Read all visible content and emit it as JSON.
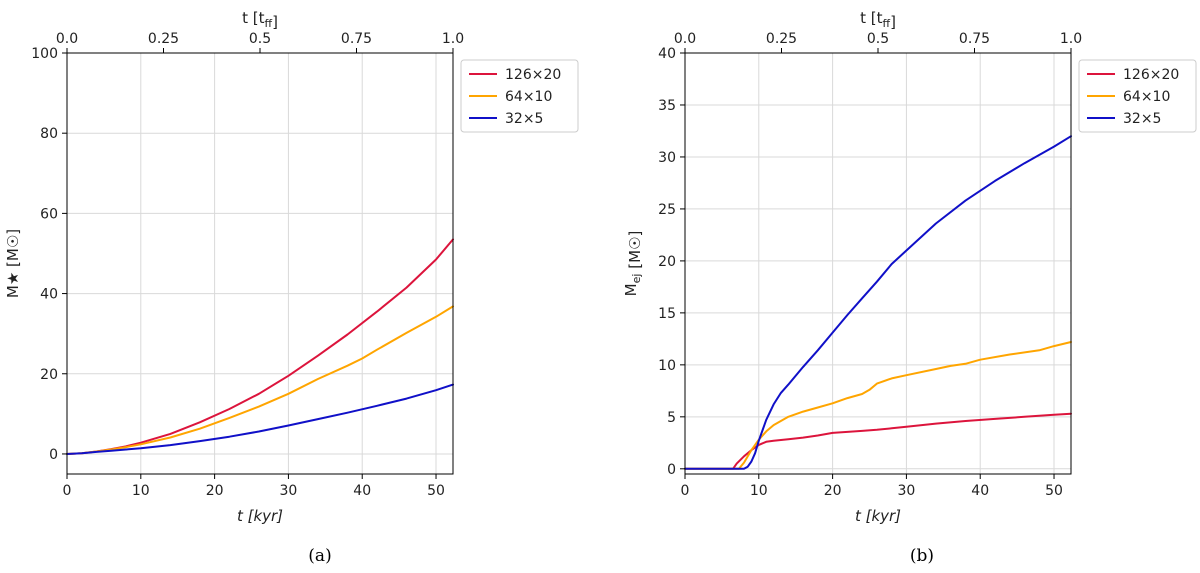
{
  "chart_data": [
    {
      "id": "a",
      "type": "line",
      "caption": "(a)",
      "xlabel": "t [kyr]",
      "ylabel": "M★ [M☉]",
      "top_xlabel": "t [t_ff]",
      "xlim": [
        0,
        52.3
      ],
      "ylim": [
        -5,
        100
      ],
      "xticks": [
        0,
        10,
        20,
        30,
        40,
        50
      ],
      "xtick_labels": [
        "0",
        "10",
        "20",
        "30",
        "40",
        "50"
      ],
      "yticks": [
        0,
        20,
        40,
        60,
        80,
        100
      ],
      "ytick_labels": [
        "0",
        "20",
        "40",
        "60",
        "80",
        "100"
      ],
      "top_xticks": [
        0,
        0.25,
        0.5,
        0.75,
        1.0
      ],
      "top_xtick_labels": [
        "0.0",
        "0.25",
        "0.5",
        "0.75",
        "1.0"
      ],
      "legend_position": "outside-top-right",
      "series": [
        {
          "name": "126×20",
          "color": "#dc143c",
          "x": [
            0,
            2,
            4,
            6,
            8,
            10,
            14,
            18,
            22,
            26,
            30,
            34,
            38,
            42,
            46,
            50,
            52.3
          ],
          "y": [
            0,
            0.2,
            0.6,
            1.2,
            1.9,
            2.8,
            5.0,
            7.9,
            11.2,
            15.0,
            19.5,
            24.5,
            29.8,
            35.5,
            41.5,
            48.5,
            53.5
          ]
        },
        {
          "name": "64×10",
          "color": "#ffa500",
          "x": [
            0,
            2,
            4,
            6,
            8,
            10,
            14,
            18,
            22,
            26,
            30,
            34,
            38,
            40,
            42,
            46,
            50,
            52.3
          ],
          "y": [
            0,
            0.2,
            0.6,
            1.1,
            1.7,
            2.4,
            4.1,
            6.3,
            9.0,
            11.8,
            15.0,
            18.7,
            22.0,
            23.8,
            26.0,
            30.2,
            34.2,
            36.8
          ]
        },
        {
          "name": "32×5",
          "color": "#1010c8",
          "x": [
            0,
            2,
            4,
            6,
            8,
            10,
            14,
            18,
            22,
            26,
            30,
            34,
            38,
            42,
            46,
            50,
            52.3
          ],
          "y": [
            0,
            0.2,
            0.5,
            0.8,
            1.1,
            1.4,
            2.2,
            3.2,
            4.3,
            5.6,
            7.1,
            8.7,
            10.3,
            12.0,
            13.8,
            15.9,
            17.3
          ]
        }
      ]
    },
    {
      "id": "b",
      "type": "line",
      "caption": "(b)",
      "xlabel": "t [kyr]",
      "ylabel": "M_ej [M☉]",
      "top_xlabel": "t [t_ff]",
      "xlim": [
        0,
        52.3
      ],
      "ylim": [
        -0.5,
        40
      ],
      "xticks": [
        0,
        10,
        20,
        30,
        40,
        50
      ],
      "xtick_labels": [
        "0",
        "10",
        "20",
        "30",
        "40",
        "50"
      ],
      "yticks": [
        0,
        5,
        10,
        15,
        20,
        25,
        30,
        35,
        40
      ],
      "ytick_labels": [
        "0",
        "5",
        "10",
        "15",
        "20",
        "25",
        "30",
        "35",
        "40"
      ],
      "top_xticks": [
        0,
        0.25,
        0.5,
        0.75,
        1.0
      ],
      "top_xtick_labels": [
        "0.0",
        "0.25",
        "0.5",
        "0.75",
        "1.0"
      ],
      "legend_position": "outside-top-right",
      "series": [
        {
          "name": "126×20",
          "color": "#dc143c",
          "x": [
            0,
            6.5,
            7,
            8,
            9,
            10,
            11,
            12,
            14,
            16,
            18,
            20,
            22,
            24,
            26,
            28,
            30,
            34,
            38,
            42,
            46,
            50,
            52.3
          ],
          "y": [
            0,
            0,
            0.5,
            1.2,
            1.8,
            2.3,
            2.6,
            2.7,
            2.85,
            3.0,
            3.2,
            3.45,
            3.55,
            3.65,
            3.75,
            3.9,
            4.05,
            4.35,
            4.6,
            4.8,
            5.0,
            5.2,
            5.3
          ]
        },
        {
          "name": "64×10",
          "color": "#ffa500",
          "x": [
            0,
            7.3,
            8,
            9,
            10,
            11,
            12,
            14,
            16,
            18,
            20,
            22,
            24,
            25,
            26,
            28,
            30,
            34,
            36,
            38,
            40,
            44,
            48,
            50,
            52.3
          ],
          "y": [
            0,
            0,
            0.6,
            1.8,
            2.8,
            3.6,
            4.2,
            5.0,
            5.5,
            5.9,
            6.3,
            6.8,
            7.2,
            7.6,
            8.2,
            8.7,
            9.0,
            9.6,
            9.9,
            10.1,
            10.5,
            11.0,
            11.4,
            11.8,
            12.2
          ]
        },
        {
          "name": "32×5",
          "color": "#1010c8",
          "x": [
            0,
            8,
            8.5,
            9,
            9.5,
            10,
            11,
            12,
            13,
            14,
            16,
            18,
            20,
            22,
            24,
            26,
            28,
            30,
            34,
            38,
            42,
            46,
            50,
            52.3
          ],
          "y": [
            0,
            0,
            0.2,
            0.7,
            1.5,
            2.7,
            4.7,
            6.2,
            7.3,
            8.1,
            9.8,
            11.4,
            13.1,
            14.8,
            16.4,
            18.0,
            19.7,
            21.0,
            23.6,
            25.8,
            27.7,
            29.4,
            31.0,
            32.0
          ]
        }
      ]
    }
  ]
}
